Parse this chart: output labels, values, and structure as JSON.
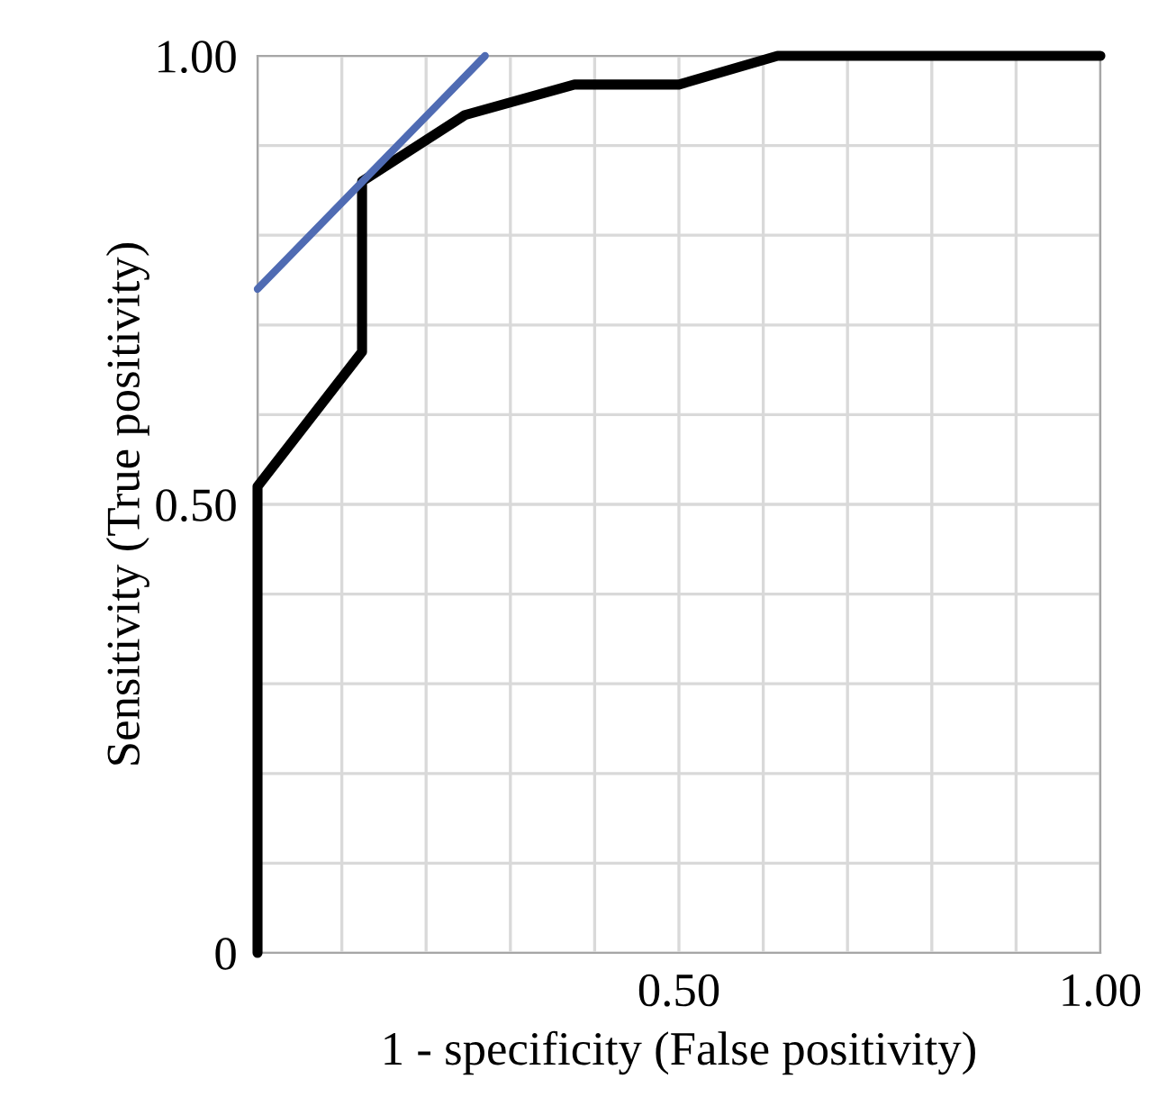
{
  "chart_data": {
    "type": "line",
    "xlabel": "1 - specificity (False positivity)",
    "ylabel": "Sensitivity (True positivity)",
    "series": [
      {
        "color": "#000000",
        "x": [
          0,
          0,
          0.124,
          0.124,
          0.246,
          0.376,
          0.5,
          0.617,
          0.68,
          1.0
        ],
        "values": [
          0,
          0.52,
          0.67,
          0.86,
          0.934,
          0.968,
          0.968,
          1.0,
          1.0,
          1.0
        ]
      },
      {
        "color": "#4f6bb3",
        "x": [
          0,
          0.27
        ],
        "values": [
          0.74,
          1.0
        ]
      }
    ],
    "xlim": [
      0,
      1
    ],
    "ylim": [
      0,
      1
    ],
    "xticks": [
      {
        "value": 0,
        "label": null
      },
      {
        "value": 0.1,
        "label": null
      },
      {
        "value": 0.2,
        "label": null
      },
      {
        "value": 0.3,
        "label": null
      },
      {
        "value": 0.4,
        "label": null
      },
      {
        "value": 0.5,
        "label": "0.50"
      },
      {
        "value": 0.6,
        "label": null
      },
      {
        "value": 0.7,
        "label": null
      },
      {
        "value": 0.8,
        "label": null
      },
      {
        "value": 0.9,
        "label": null
      },
      {
        "value": 1.0,
        "label": "1.00"
      }
    ],
    "yticks": [
      0,
      {
        "value": 0.1,
        "label": null
      },
      {
        "value": 0.2,
        "label": null
      },
      {
        "value": 0.3,
        "label": null
      },
      {
        "value": 0.4,
        "label": null
      },
      {
        "value": 0.5,
        "label": "0.50"
      },
      {
        "value": 0.6,
        "label": null
      },
      {
        "value": 0.7,
        "label": null
      },
      {
        "value": 0.8,
        "label": null
      },
      {
        "value": 0.9,
        "label": null
      },
      {
        "value": 1.0,
        "label": "1.00"
      }
    ],
    "grid": true,
    "legend": false,
    "marker": "none",
    "line_style": "solid"
  }
}
